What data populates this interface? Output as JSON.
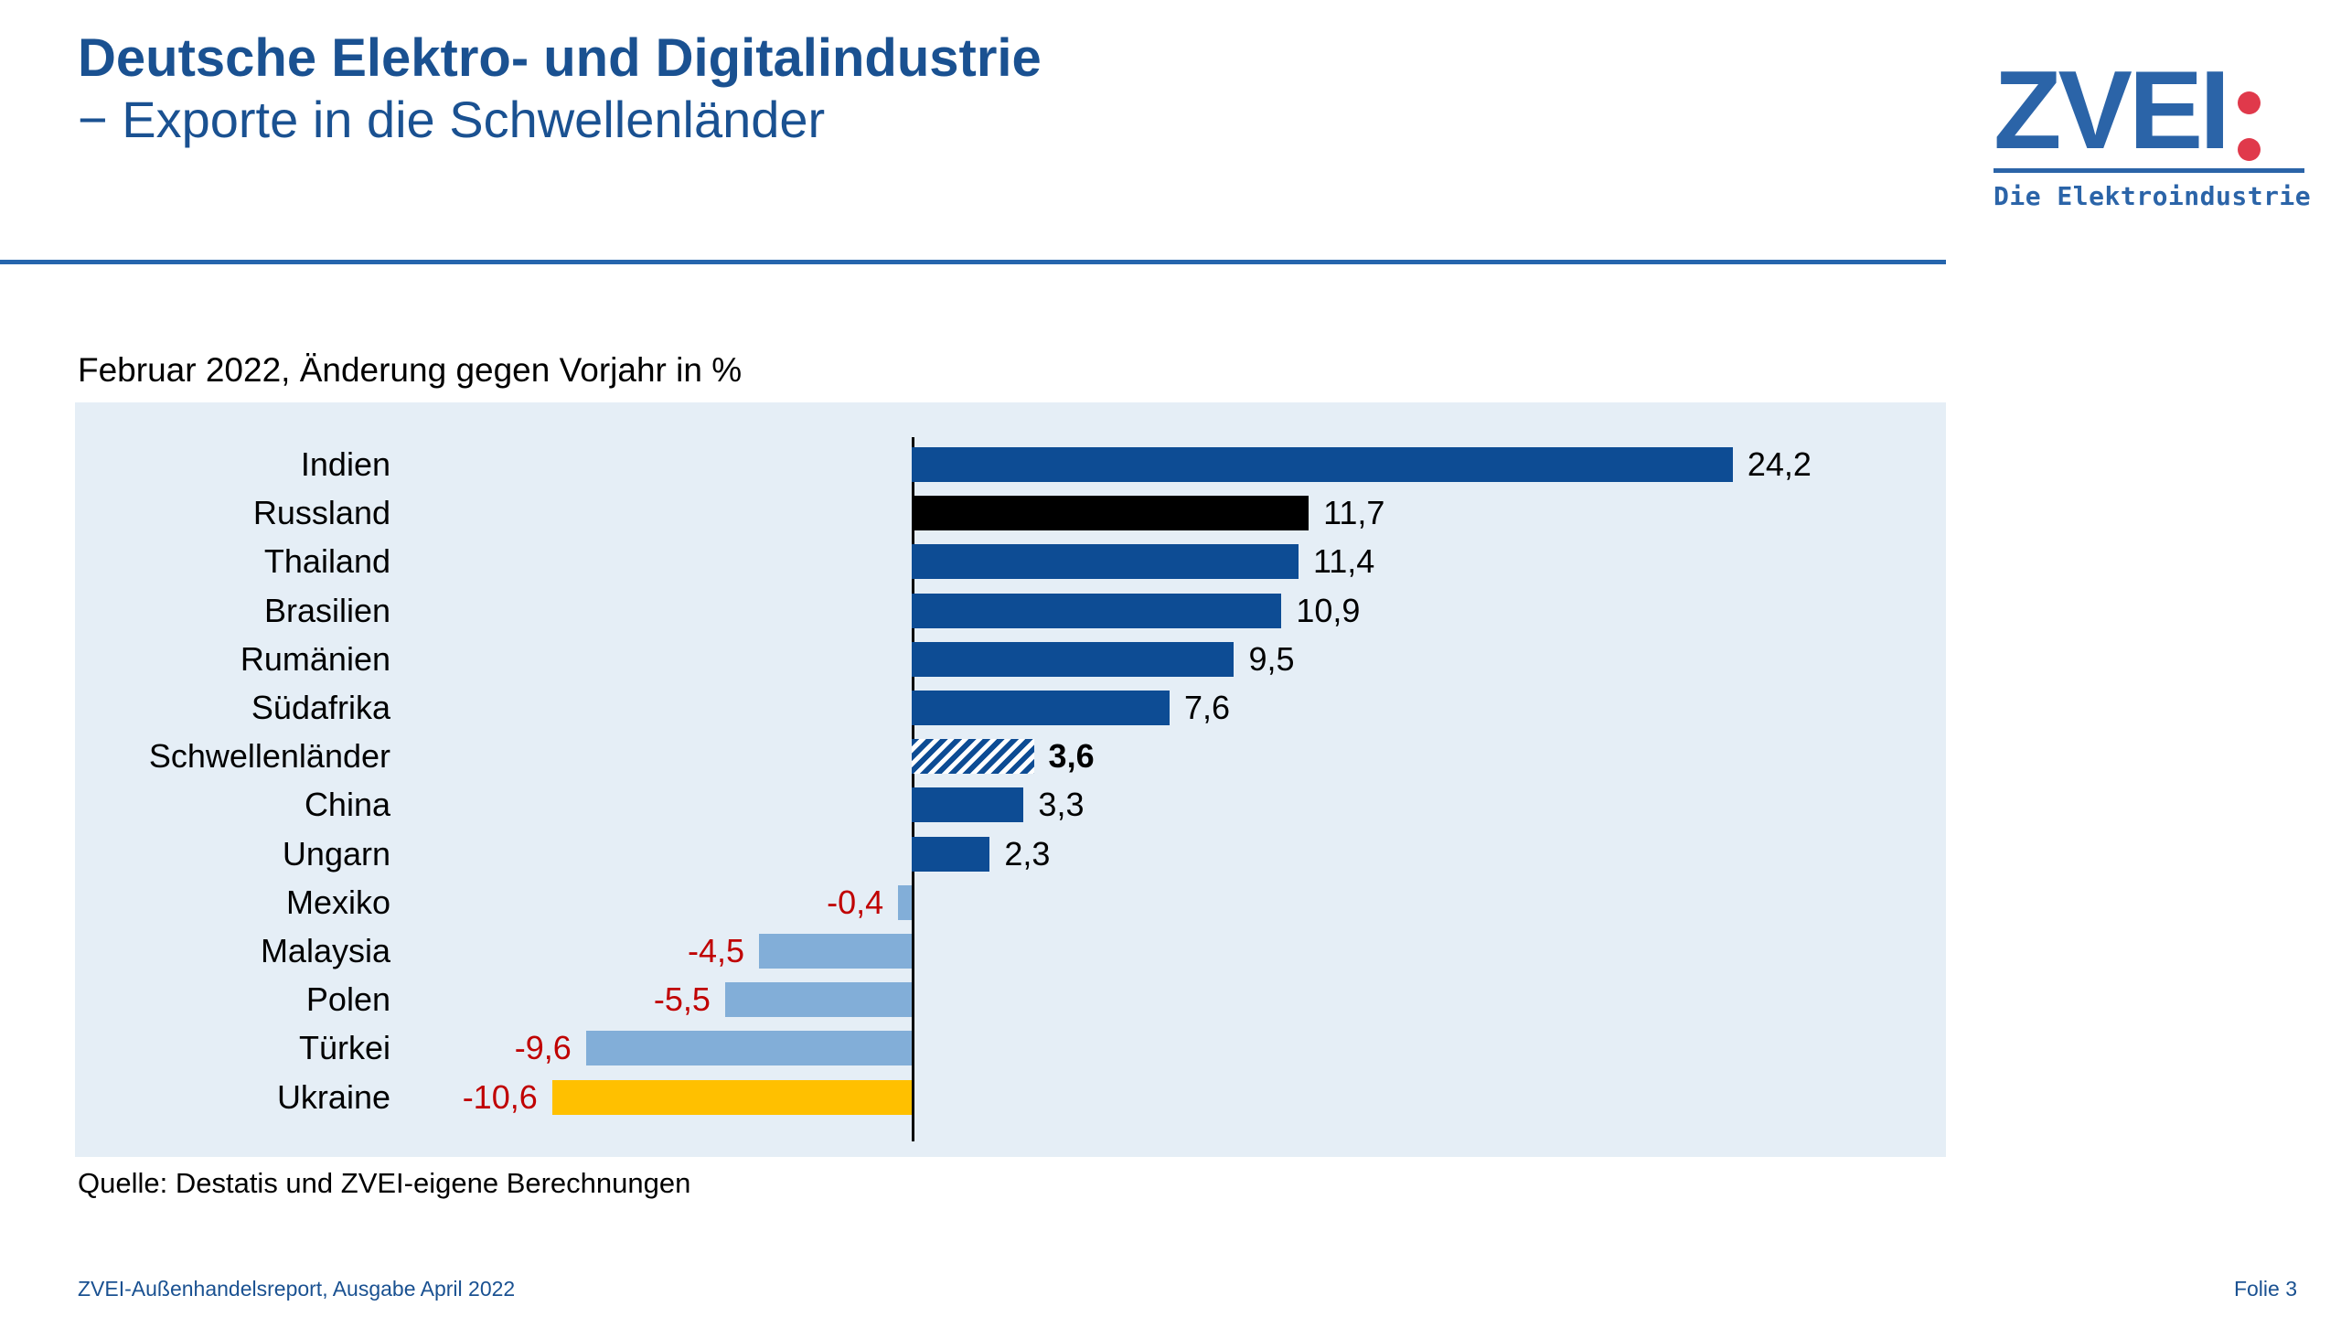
{
  "header": {
    "title_line1": "Deutsche Elektro- und Digitalindustrie",
    "title_line2": "− Exporte in die Schwellenländer"
  },
  "logo": {
    "wordmark": "ZVEI",
    "tagline": "Die Elektroindustrie",
    "blue": "#2b64a8",
    "red": "#e0394b"
  },
  "chart_data": {
    "type": "bar",
    "orientation": "horizontal",
    "title": "Februar 2022, Änderung gegen Vorjahr in %",
    "categories": [
      "Indien",
      "Russland",
      "Thailand",
      "Brasilien",
      "Rumänien",
      "Südafrika",
      "Schwellenländer",
      "China",
      "Ungarn",
      "Mexiko",
      "Malaysia",
      "Polen",
      "Türkei",
      "Ukraine"
    ],
    "values": [
      24.2,
      11.7,
      11.4,
      10.9,
      9.5,
      7.6,
      3.6,
      3.3,
      2.3,
      -0.4,
      -4.5,
      -5.5,
      -9.6,
      -10.6
    ],
    "value_labels": [
      "24,2",
      "11,7",
      "11,4",
      "10,9",
      "9,5",
      "7,6",
      "3,6",
      "3,3",
      "2,3",
      "-0,4",
      "-4,5",
      "-5,5",
      "-9,6",
      "-10,6"
    ],
    "bar_styles": [
      "blue",
      "black",
      "blue",
      "blue",
      "blue",
      "blue",
      "hatched",
      "blue",
      "blue",
      "lightblue",
      "lightblue",
      "lightblue",
      "lightblue",
      "yellow"
    ],
    "emphasized_category": "Schwellenländer",
    "xlim": [
      -12,
      28
    ],
    "zero_axis": true,
    "grid": false,
    "legend": "none",
    "colors": {
      "bar_positive": "#0d4c94",
      "bar_russland": "#000000",
      "bar_negative": "#82aed8",
      "bar_ukraine": "#ffc000",
      "negative_text": "#c00000",
      "plot_background": "#e5eef6"
    }
  },
  "source": "Quelle: Destatis und ZVEI-eigene Berechnungen",
  "footer": {
    "left": "ZVEI-Außenhandelsreport, Ausgabe April 2022",
    "right": "Folie 3"
  }
}
